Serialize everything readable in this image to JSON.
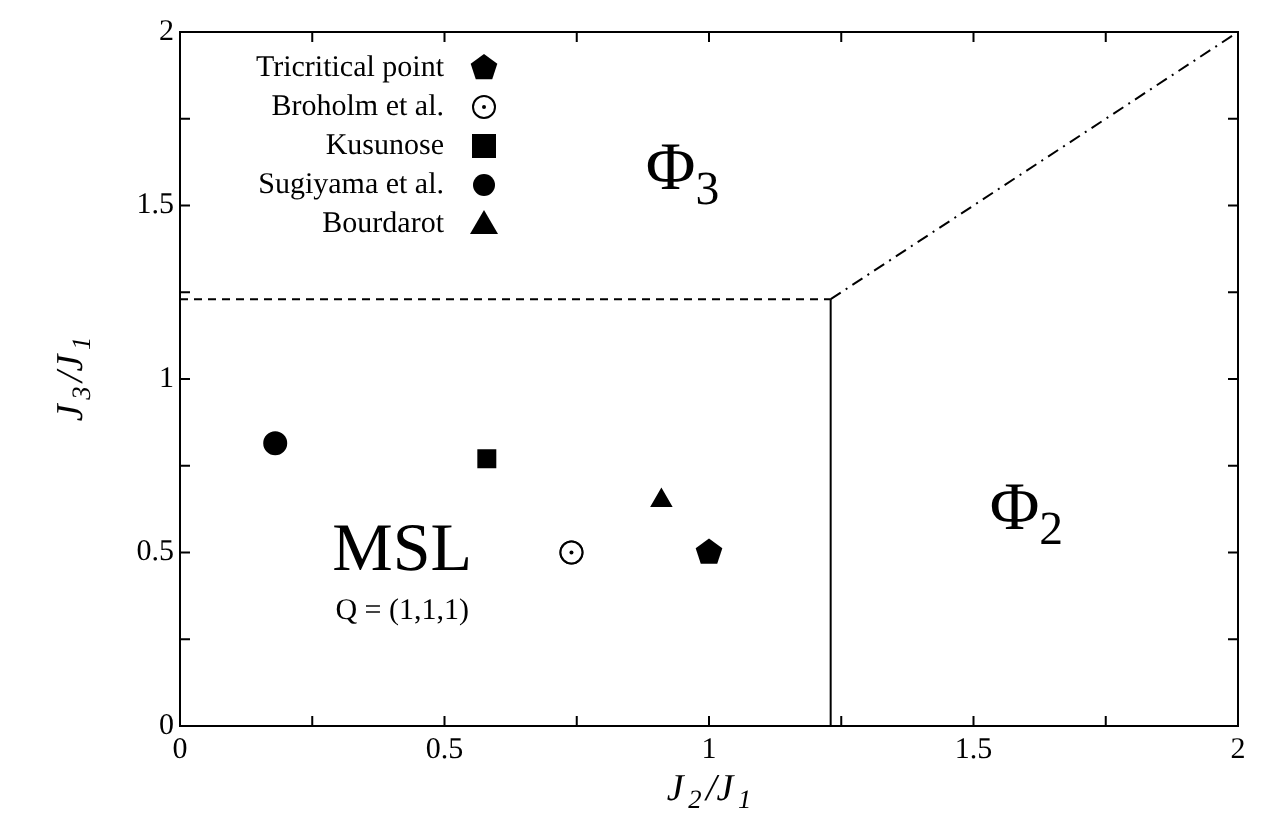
{
  "chart_data": {
    "type": "scatter",
    "xlabel": "J$_{2}$/J$_{1}$",
    "ylabel": "J$_{3}$/J$_{1}$",
    "xlim": [
      0,
      2
    ],
    "ylim": [
      0,
      2
    ],
    "xticks": [
      0,
      {
        "value": 0.25,
        "label": null
      },
      0.5,
      {
        "value": 0.75,
        "label": null
      },
      1,
      {
        "value": 1.25,
        "label": null
      },
      1.5,
      {
        "value": 1.75,
        "label": null
      },
      2
    ],
    "yticks": [
      0,
      {
        "value": 0.25,
        "label": null
      },
      0.5,
      {
        "value": 0.75,
        "label": null
      },
      1,
      {
        "value": 1.25,
        "label": null
      },
      1.5,
      {
        "value": 1.75,
        "label": null
      },
      2
    ],
    "grid": false,
    "legend": "top left",
    "series": [
      {
        "name": "Tricritical point",
        "color": "#000000",
        "x": [
          1.0
        ],
        "values": [
          0.5
        ]
      },
      {
        "name": "Broholm et al.",
        "color": "#000000",
        "marker": "open-circle",
        "x": [
          0.74
        ],
        "values": [
          0.5
        ]
      },
      {
        "name": "Kusunose",
        "color": "#000000",
        "marker": "square",
        "x": [
          0.58
        ],
        "values": [
          0.77
        ]
      },
      {
        "name": "Sugiyama et al.",
        "color": "#000000",
        "marker": "circle",
        "x": [
          0.18
        ],
        "values": [
          0.815
        ]
      },
      {
        "name": "Bourdarot",
        "color": "#000000",
        "marker": "triangle",
        "x": [
          0.91
        ],
        "values": [
          0.65
        ]
      },
      {
        "type": "line",
        "color": "#000000",
        "line_style": "dashed",
        "marker": "none",
        "x": [
          0,
          1.23
        ],
        "values": [
          1.23,
          1.23
        ]
      },
      {
        "type": "line",
        "color": "#000000",
        "line_style": "solid",
        "marker": "none",
        "x": [
          1.23,
          1.23
        ],
        "values": [
          0,
          1.23
        ]
      },
      {
        "type": "line",
        "color": "#000000",
        "line_style": "dashdot",
        "marker": "none",
        "x": [
          1.23,
          2
        ],
        "values": [
          1.23,
          2
        ]
      }
    ],
    "annotations": [
      "Φ$_{3}$",
      "Φ$_{2}$",
      "MSL",
      "Q = (1,1,1)"
    ]
  }
}
